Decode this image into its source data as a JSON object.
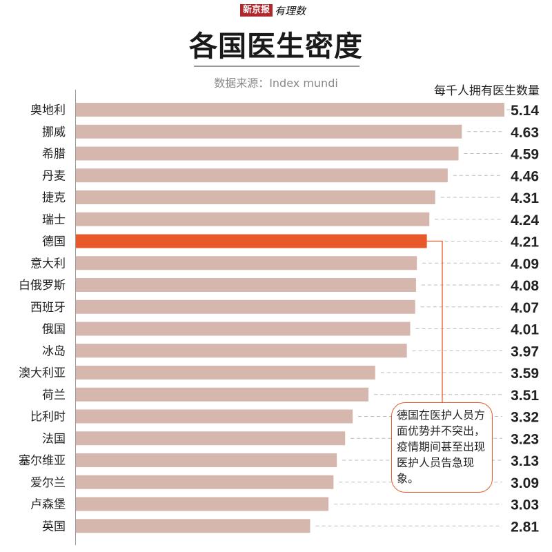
{
  "brand": {
    "name": "新京报",
    "sub": "有理数"
  },
  "colors": {
    "bar": "#d5b7ad",
    "highlight": "#e8582a",
    "text": "#222222"
  },
  "chart_data": {
    "type": "bar",
    "orientation": "horizontal",
    "title": "各国医生密度",
    "source": "数据来源：Index mundi",
    "unit_label": "每千人拥有医生数量",
    "categories": [
      "奥地利",
      "挪威",
      "希腊",
      "丹麦",
      "捷克",
      "瑞士",
      "德国",
      "意大利",
      "白俄罗斯",
      "西班牙",
      "俄国",
      "冰岛",
      "澳大利亚",
      "荷兰",
      "比利时",
      "法国",
      "塞尔维亚",
      "爱尔兰",
      "卢森堡",
      "英国"
    ],
    "values": [
      5.14,
      4.63,
      4.59,
      4.46,
      4.31,
      4.24,
      4.21,
      4.09,
      4.08,
      4.07,
      4.01,
      3.97,
      3.59,
      3.51,
      3.32,
      3.23,
      3.13,
      3.09,
      3.03,
      2.81
    ],
    "value_labels": [
      "5.14",
      "4.63",
      "4.59",
      "4.46",
      "4.31",
      "4.24",
      "4.21",
      "4.09",
      "4.08",
      "4.07",
      "4.01",
      "3.97",
      "3.59",
      "3.51",
      "3.32",
      "3.23",
      "3.13",
      "3.09",
      "3.03",
      "2.81"
    ],
    "highlight": "德国",
    "xlim": [
      0,
      5.14
    ],
    "annotation": "德国在医护人员方面优势并不突出，疫情期间甚至出现医护人员告急现象。"
  }
}
